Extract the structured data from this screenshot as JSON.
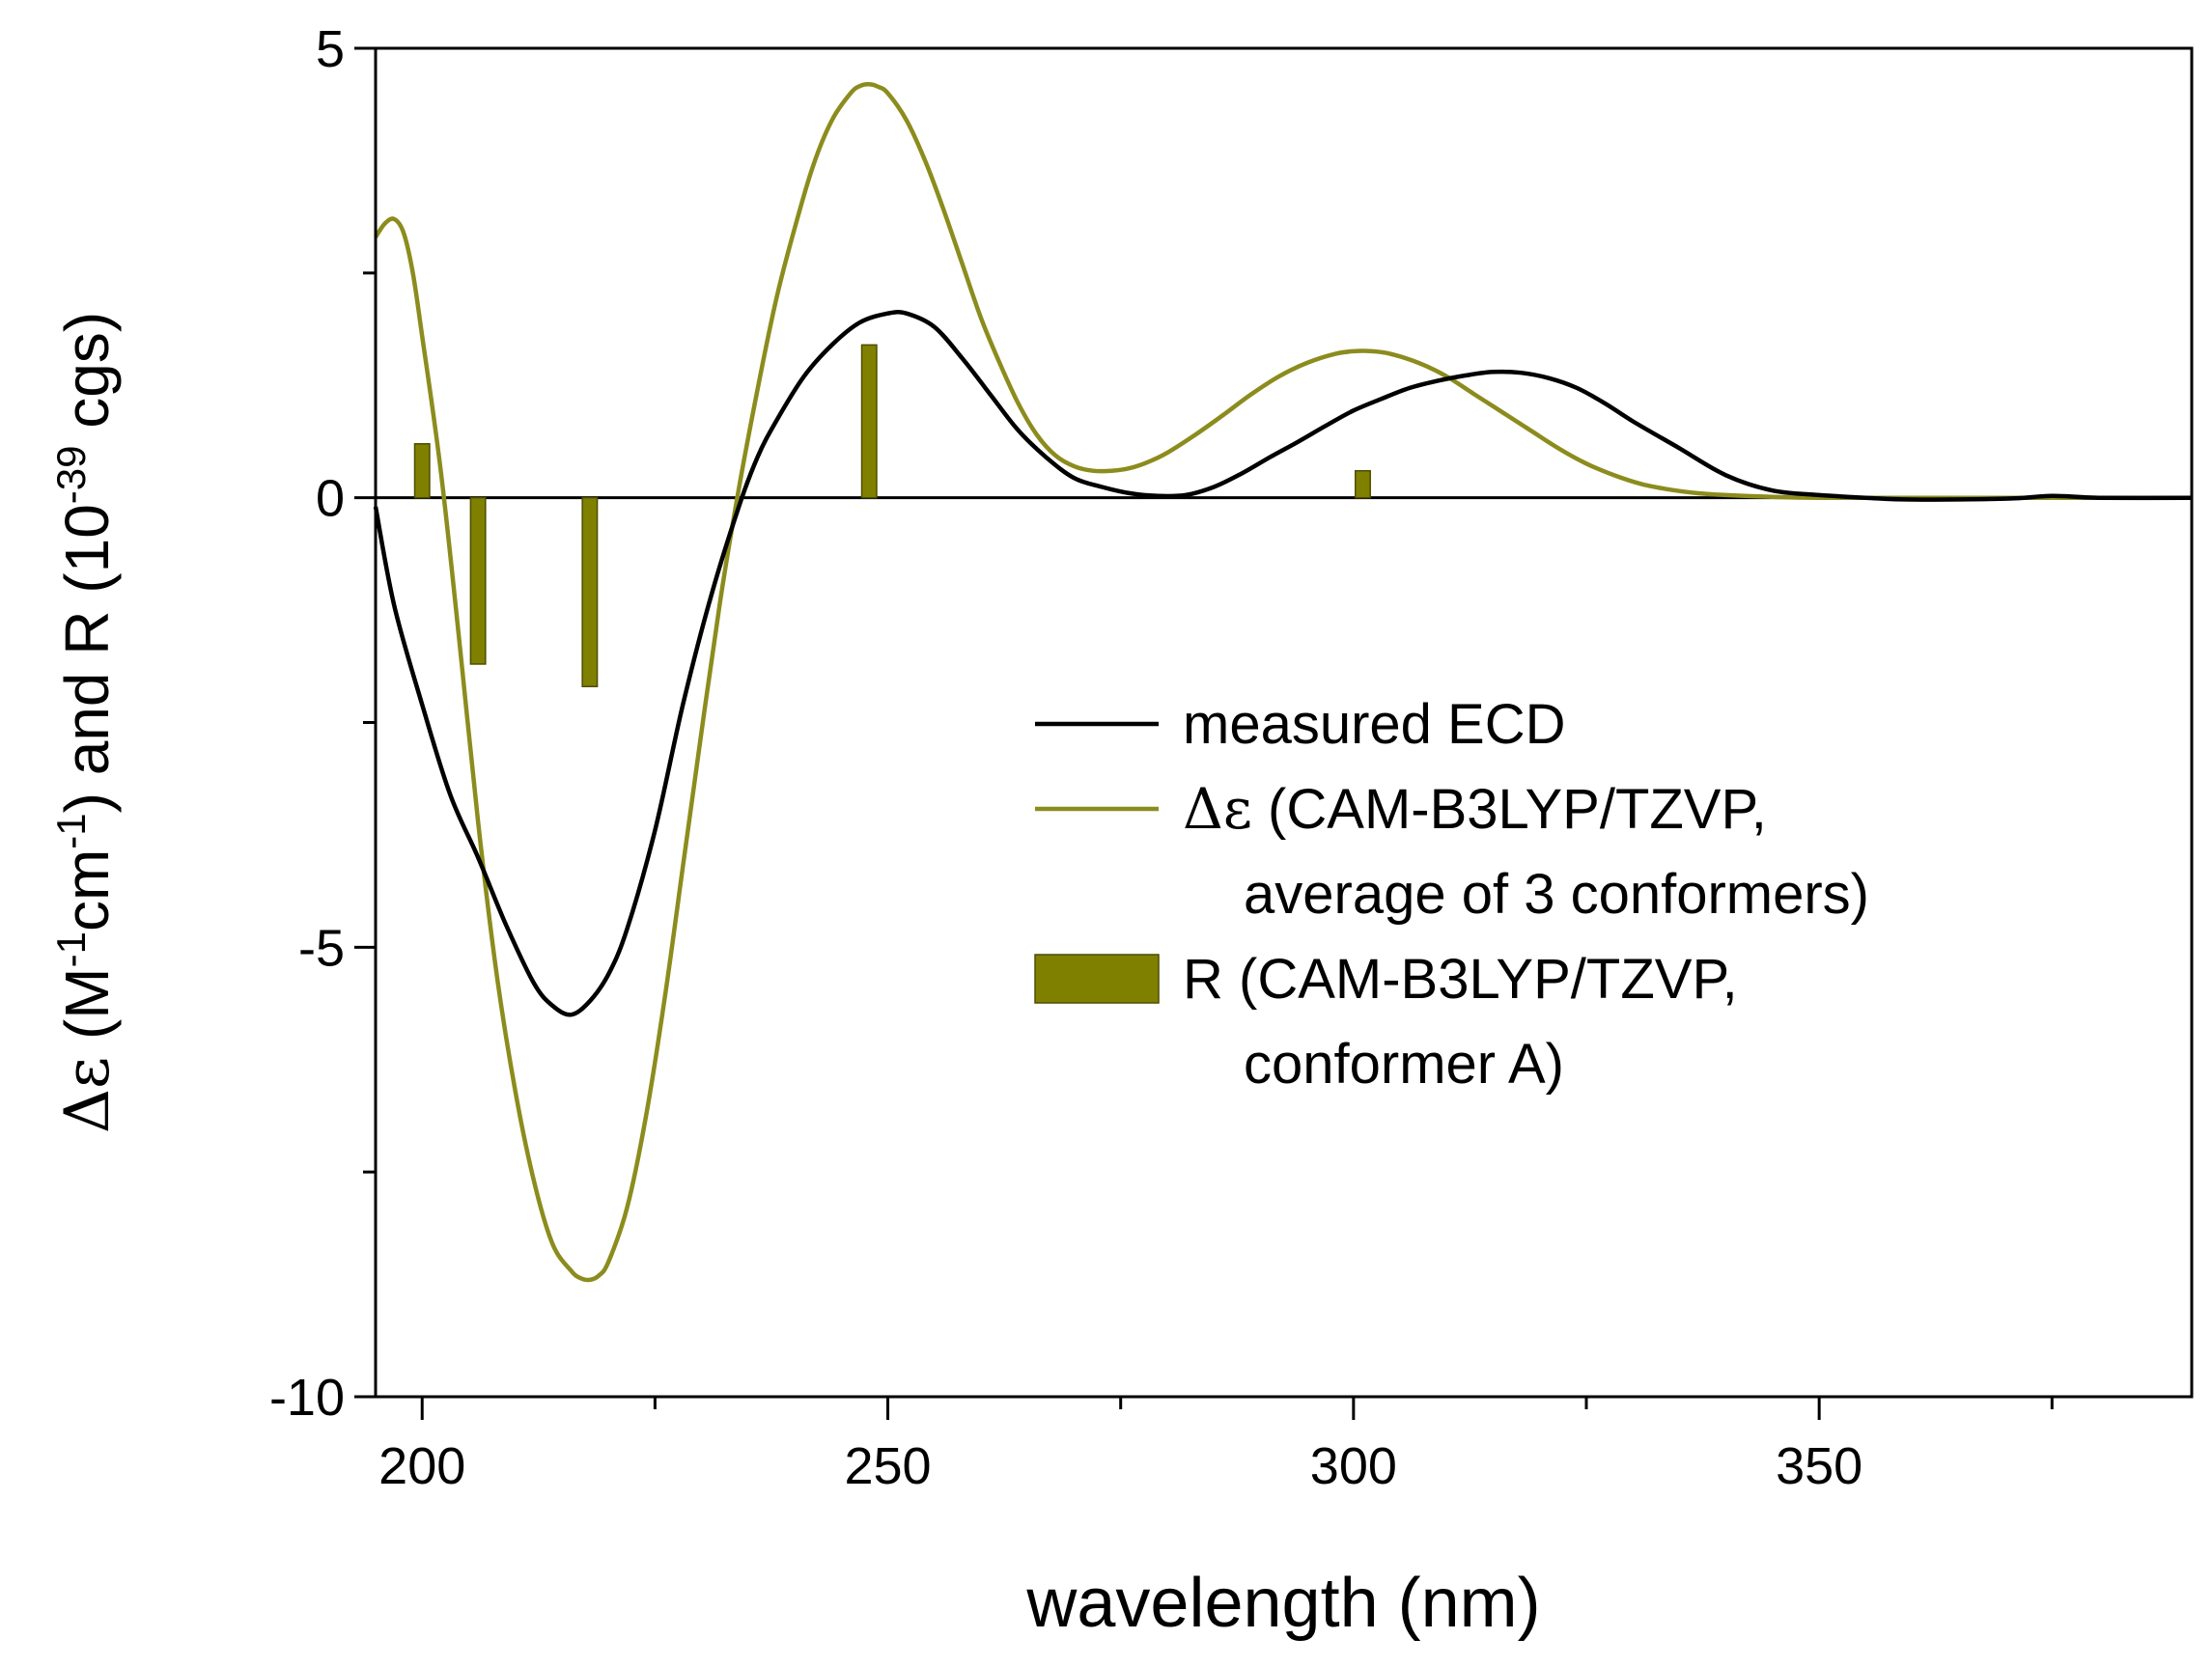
{
  "chart_data": {
    "type": "line",
    "title": "",
    "xlabel": "wavelength (nm)",
    "ylabel": {
      "delta_symbol": "Δε",
      "part1": " (M",
      "sup1": "-1",
      "part2": "cm",
      "sup2": "-1",
      "part3": ") and R (10",
      "sup3": "-39",
      "part4": " cgs)"
    },
    "xlim": [
      195,
      390
    ],
    "ylim": [
      -10,
      5
    ],
    "xticks": [
      200,
      250,
      300,
      350
    ],
    "xtick_labels": [
      "200",
      "250",
      "300",
      "350"
    ],
    "xminor": [
      225,
      275,
      325,
      375
    ],
    "yticks": [
      -10,
      -5,
      0,
      5
    ],
    "ytick_labels": [
      "-10",
      "-5",
      "0",
      "5"
    ],
    "yminor": [
      -7.5,
      -2.5,
      2.5
    ],
    "colors": {
      "measured": "#000000",
      "computed": "#8c8c1e",
      "bars": "#808000",
      "bar_edge": "#4d4d00"
    },
    "series": [
      {
        "name": "measured ECD",
        "x": [
          195,
          197,
          200,
          203,
          206,
          209,
          212,
          214,
          216,
          218,
          220,
          222,
          225,
          228,
          231,
          234,
          236,
          238,
          241,
          244,
          247,
          250,
          252,
          255,
          258,
          261,
          264,
          267,
          270,
          273,
          276,
          279,
          282,
          285,
          288,
          291,
          294,
          297,
          300,
          303,
          306,
          309,
          312,
          315,
          318,
          321,
          324,
          327,
          330,
          335,
          340,
          345,
          350,
          355,
          360,
          370,
          375,
          380,
          390
        ],
        "y": [
          -0.1,
          -1.2,
          -2.3,
          -3.3,
          -4.0,
          -4.75,
          -5.4,
          -5.65,
          -5.75,
          -5.6,
          -5.3,
          -4.8,
          -3.7,
          -2.3,
          -1.1,
          -0.1,
          0.45,
          0.85,
          1.35,
          1.7,
          1.95,
          2.05,
          2.05,
          1.9,
          1.55,
          1.15,
          0.75,
          0.45,
          0.22,
          0.12,
          0.05,
          0.02,
          0.03,
          0.12,
          0.27,
          0.45,
          0.62,
          0.8,
          0.97,
          1.1,
          1.22,
          1.3,
          1.36,
          1.4,
          1.39,
          1.33,
          1.22,
          1.05,
          0.85,
          0.55,
          0.25,
          0.08,
          0.03,
          0.0,
          -0.02,
          -0.01,
          0.02,
          0.0,
          0.0
        ]
      },
      {
        "name": "Δε (CAM-B3LYP/TZVP, average of 3 conformers)",
        "x": [
          195,
          196,
          197,
          198,
          199,
          200,
          202,
          204,
          206,
          208,
          210,
          212,
          214,
          216,
          217,
          218,
          219,
          220,
          222,
          224,
          226,
          228,
          230,
          232,
          234,
          236,
          238,
          240,
          242,
          244,
          246,
          247,
          248,
          249,
          250,
          252,
          254,
          256,
          258,
          260,
          262,
          264,
          266,
          268,
          270,
          272,
          274,
          276,
          278,
          280,
          283,
          286,
          289,
          292,
          295,
          298,
          300,
          302,
          304,
          307,
          310,
          313,
          316,
          319,
          322,
          325,
          328,
          331,
          334,
          337,
          340,
          345,
          350,
          360,
          390
        ],
        "y": [
          2.9,
          3.05,
          3.1,
          2.95,
          2.5,
          1.8,
          0.3,
          -1.6,
          -3.6,
          -5.3,
          -6.6,
          -7.6,
          -8.3,
          -8.6,
          -8.68,
          -8.7,
          -8.65,
          -8.5,
          -7.9,
          -6.9,
          -5.6,
          -4.1,
          -2.6,
          -1.15,
          0.1,
          1.2,
          2.2,
          3.0,
          3.7,
          4.2,
          4.5,
          4.58,
          4.6,
          4.57,
          4.5,
          4.2,
          3.75,
          3.2,
          2.6,
          2.0,
          1.5,
          1.05,
          0.7,
          0.47,
          0.35,
          0.3,
          0.3,
          0.33,
          0.4,
          0.5,
          0.7,
          0.92,
          1.15,
          1.35,
          1.5,
          1.6,
          1.63,
          1.63,
          1.6,
          1.5,
          1.35,
          1.15,
          0.95,
          0.75,
          0.55,
          0.38,
          0.25,
          0.15,
          0.09,
          0.05,
          0.03,
          0.01,
          0.0,
          0.0,
          0.0
        ]
      }
    ],
    "bars": {
      "name": "R (CAM-B3LYP/TZVP, conformer A)",
      "x": [
        200,
        206,
        218,
        248,
        301
      ],
      "values": [
        0.6,
        -1.85,
        -2.1,
        1.7,
        0.3
      ],
      "width_nm": 1.6
    },
    "legend": {
      "placement": "center-right",
      "entries": [
        {
          "kind": "line",
          "series": "measured",
          "lines": [
            "measured ECD"
          ]
        },
        {
          "kind": "line",
          "series": "computed",
          "lines": [
            "Δε (CAM-B3LYP/TZVP,",
            "average of 3 conformers)"
          ]
        },
        {
          "kind": "bar",
          "series": "bars",
          "lines": [
            "R (CAM-B3LYP/TZVP,",
            "conformer A)"
          ]
        }
      ]
    }
  }
}
